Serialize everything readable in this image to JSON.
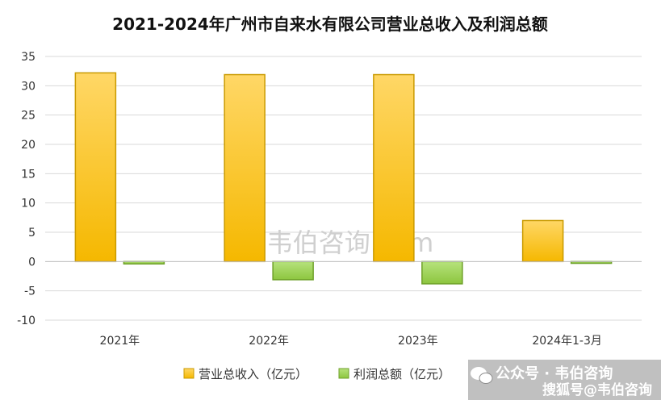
{
  "chart_data": {
    "type": "bar",
    "title": "2021-2024年广州市自来水有限公司营业总收入及利润总额",
    "categories": [
      "2021年",
      "2022年",
      "2023年",
      "2024年1-3月"
    ],
    "series": [
      {
        "name": "营业总收入（亿元）",
        "color": "#f5b800",
        "values": [
          32.2,
          31.9,
          31.9,
          7.0
        ]
      },
      {
        "name": "利润总额（亿元）",
        "color": "#8dc63f",
        "values": [
          -0.4,
          -3.1,
          -3.8,
          -0.3
        ]
      }
    ],
    "ylim": [
      -10,
      35
    ],
    "yticks": [
      35,
      30,
      25,
      20,
      15,
      10,
      5,
      0,
      -5,
      -10
    ],
    "grid": true,
    "legend": "bottom"
  },
  "watermark": "韦伯咨询.com",
  "footer": {
    "wechat": "公众号 · 韦伯咨询",
    "source": "搜狐号@韦伯咨询"
  }
}
